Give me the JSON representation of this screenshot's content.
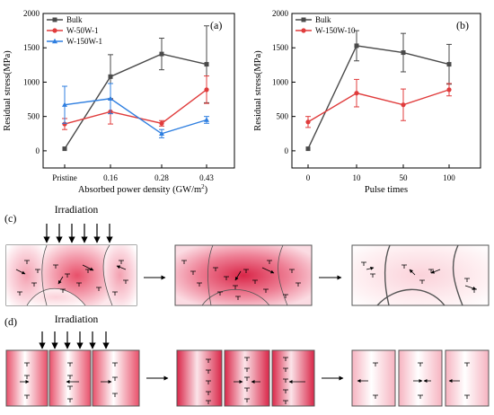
{
  "chart_data": [
    {
      "type": "line",
      "panel_label": "(a)",
      "xlabel": "Absorbed power density (GW/m",
      "xlabel_sup": "2",
      "xlabel_end": ")",
      "ylabel": "Residual stress(MPa)",
      "categories": [
        "Pristine",
        "0.16",
        "0.28",
        "0.43"
      ],
      "ylim": [
        -250,
        2000
      ],
      "yticks": [
        "0",
        "500",
        "1000",
        "1500",
        "2000"
      ],
      "legend_position": "top-left",
      "series": [
        {
          "name": "Bulk",
          "color": "#4a4a4a",
          "marker": "square",
          "values": [
            30,
            1080,
            1410,
            1260
          ],
          "errors": [
            0,
            320,
            230,
            560
          ]
        },
        {
          "name": "W-50W-1",
          "color": "#e03c3c",
          "marker": "circle",
          "values": [
            390,
            570,
            400,
            890
          ],
          "errors": [
            80,
            180,
            40,
            200
          ]
        },
        {
          "name": "W-150W-1",
          "color": "#2f7fe0",
          "marker": "triangle",
          "values": [
            670,
            760,
            250,
            450
          ],
          "errors": [
            270,
            220,
            60,
            50
          ]
        }
      ]
    },
    {
      "type": "line",
      "panel_label": "(b)",
      "xlabel": "Pulse times",
      "ylabel": "Residual stress(MPa)",
      "categories": [
        "0",
        "10",
        "50",
        "100"
      ],
      "ylim": [
        -250,
        2000
      ],
      "yticks": [
        "0",
        "500",
        "1000",
        "1500",
        "2000"
      ],
      "legend_position": "top-left",
      "series": [
        {
          "name": "Bulk",
          "color": "#4a4a4a",
          "marker": "square",
          "values": [
            30,
            1530,
            1430,
            1260
          ],
          "errors": [
            0,
            220,
            280,
            290
          ]
        },
        {
          "name": "W-150W-10",
          "color": "#e03c3c",
          "marker": "circle",
          "values": [
            420,
            840,
            670,
            890
          ],
          "errors": [
            80,
            200,
            230,
            90
          ]
        }
      ]
    }
  ],
  "schematic": {
    "c_label": "(c)",
    "d_label": "(d)",
    "irradiation_c": "Irradiation",
    "irradiation_d": "Irradiation"
  }
}
